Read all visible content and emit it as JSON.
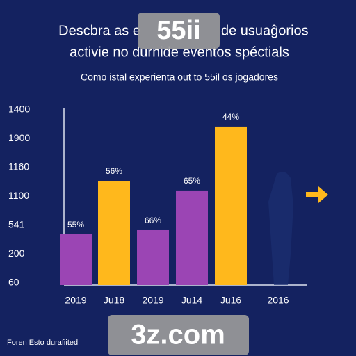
{
  "chart_data": {
    "type": "bar",
    "title_parts": [
      "Descbra as e",
      "de usuaĝorios"
    ],
    "title_line2": "activie no durnide eventos spéctials",
    "subtitle": "Como istal experienta out to 55il os jogadores",
    "categories": [
      "2019",
      "Ju18",
      "2019",
      "Ju14",
      "Ju16",
      "2016"
    ],
    "values": [
      406,
      833,
      439,
      756,
      1267,
      null
    ],
    "colors": [
      "#9b45b4",
      "#ffb81c",
      "#9b45b4",
      "#9b45b4",
      "#ffb81c",
      "#9b45b4"
    ],
    "bar_annotations": [
      "55%",
      "56%",
      "66%",
      "65%",
      "44%",
      null
    ],
    "ylim": [
      0,
      1400
    ],
    "y_labels": [
      "1400",
      "1900",
      "1160",
      "1100",
      "541",
      "200",
      "60"
    ],
    "footer": "Foren Esto durafiited",
    "watermarks": [
      "55ii",
      "3z.com"
    ]
  }
}
